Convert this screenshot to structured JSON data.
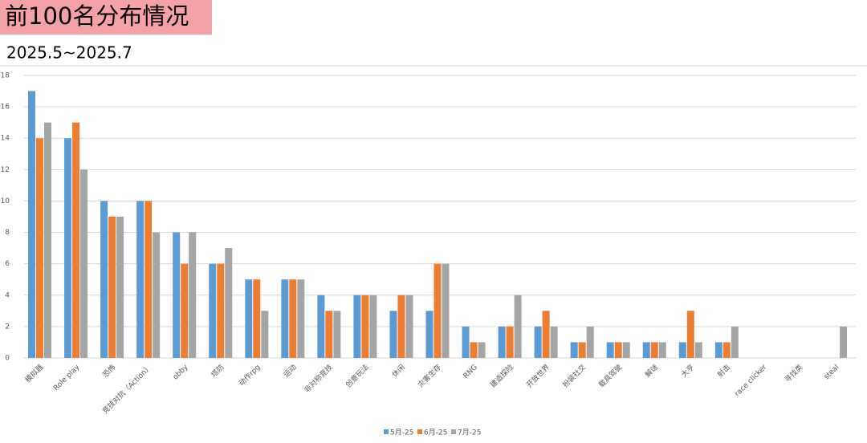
{
  "chart_data": {
    "type": "bar",
    "title": "前100名分布情况",
    "subtitle": "2025.5~2025.7",
    "categories": [
      "模拟器",
      "Role play",
      "恐怖",
      "竞技对抗（Action）",
      "obby",
      "塔防",
      "动作rpg",
      "运动",
      "非对称竞技",
      "创意玩法",
      "休闲",
      "灾害生存",
      "RNG",
      "建造探险",
      "开放世界",
      "扮装社交",
      "载具驾驶",
      "解谜",
      "大亨",
      "射击",
      "race clicker",
      "寻找类",
      "steal"
    ],
    "series": [
      {
        "name": "5月-25",
        "color": "#5b9bd5",
        "values": [
          17,
          14,
          10,
          10,
          8,
          6,
          5,
          5,
          4,
          4,
          3,
          3,
          2,
          2,
          2,
          1,
          1,
          1,
          1,
          1,
          0,
          0,
          0
        ]
      },
      {
        "name": "6月-25",
        "color": "#ed7d31",
        "values": [
          14,
          15,
          9,
          10,
          6,
          6,
          5,
          5,
          3,
          4,
          4,
          6,
          1,
          2,
          3,
          1,
          1,
          1,
          3,
          1,
          0,
          0,
          0
        ]
      },
      {
        "name": "7月-25",
        "color": "#a5a5a5",
        "values": [
          15,
          12,
          9,
          8,
          8,
          7,
          3,
          5,
          3,
          4,
          4,
          6,
          1,
          4,
          2,
          2,
          1,
          1,
          1,
          2,
          0,
          0,
          2
        ]
      }
    ],
    "ylim": [
      0,
      18
    ],
    "yticks": [
      0,
      2,
      4,
      6,
      8,
      10,
      12,
      14,
      16,
      18
    ],
    "grid": true,
    "legend": "bottom"
  }
}
